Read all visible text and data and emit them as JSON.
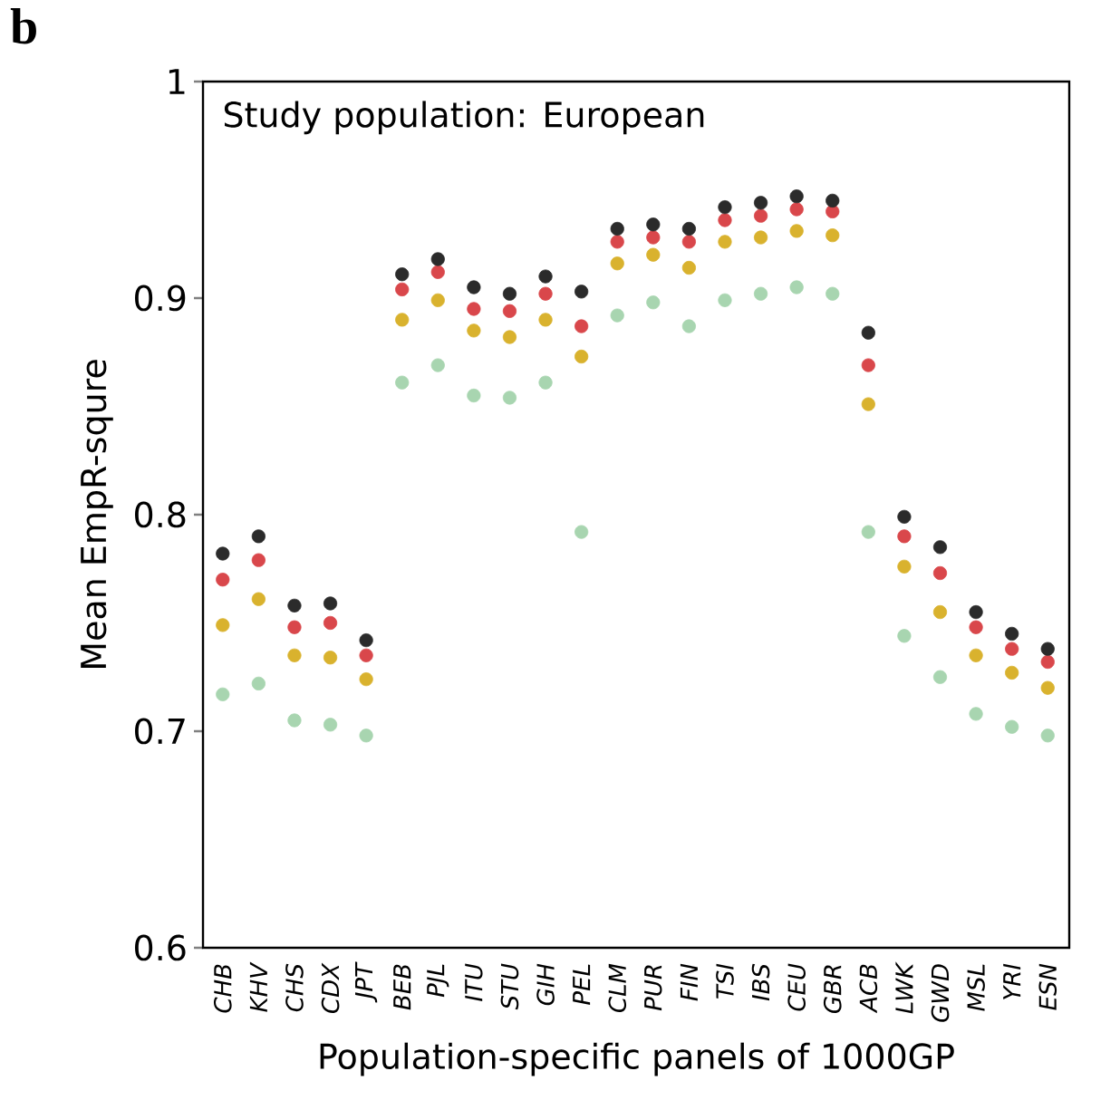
{
  "chart_data": {
    "type": "scatter",
    "xlabel": "Population-specific panels of 1000GP",
    "ylabel": "Mean EmpR-squre",
    "annotations": [
      "b",
      "Study population: European"
    ],
    "categories": [
      "CHB",
      "KHV",
      "CHS",
      "CDX",
      "JPT",
      "BEB",
      "PJL",
      "ITU",
      "STU",
      "GIH",
      "PEL",
      "CLM",
      "PUR",
      "FIN",
      "TSI",
      "IBS",
      "CEU",
      "GBR",
      "ACB",
      "LWK",
      "GWD",
      "MSL",
      "YRI",
      "ESN"
    ],
    "ylim": [
      0.6,
      1
    ],
    "yticks": [
      0.6,
      0.7,
      0.8,
      0.9,
      1
    ],
    "grid": false,
    "series": [
      {
        "color": "#a8d5b0",
        "values": [
          0.717,
          0.722,
          0.705,
          0.703,
          0.698,
          0.861,
          0.869,
          0.855,
          0.854,
          0.861,
          0.792,
          0.892,
          0.898,
          0.887,
          0.899,
          0.902,
          0.905,
          0.902,
          0.792,
          0.744,
          0.725,
          0.708,
          0.702,
          0.698
        ]
      },
      {
        "color": "#d9b22e",
        "values": [
          0.749,
          0.761,
          0.735,
          0.734,
          0.724,
          0.89,
          0.899,
          0.885,
          0.882,
          0.89,
          0.873,
          0.916,
          0.92,
          0.914,
          0.926,
          0.928,
          0.931,
          0.929,
          0.851,
          0.776,
          0.755,
          0.735,
          0.727,
          0.72
        ]
      },
      {
        "color": "#d9474b",
        "values": [
          0.77,
          0.779,
          0.748,
          0.75,
          0.735,
          0.904,
          0.912,
          0.895,
          0.894,
          0.902,
          0.887,
          0.926,
          0.928,
          0.926,
          0.936,
          0.938,
          0.941,
          0.94,
          0.869,
          0.79,
          0.773,
          0.748,
          0.738,
          0.732
        ]
      },
      {
        "color": "#2b2b2b",
        "values": [
          0.782,
          0.79,
          0.758,
          0.759,
          0.742,
          0.911,
          0.918,
          0.905,
          0.902,
          0.91,
          0.903,
          0.932,
          0.934,
          0.932,
          0.942,
          0.944,
          0.947,
          0.945,
          0.884,
          0.799,
          0.785,
          0.755,
          0.745,
          0.738
        ]
      }
    ]
  }
}
